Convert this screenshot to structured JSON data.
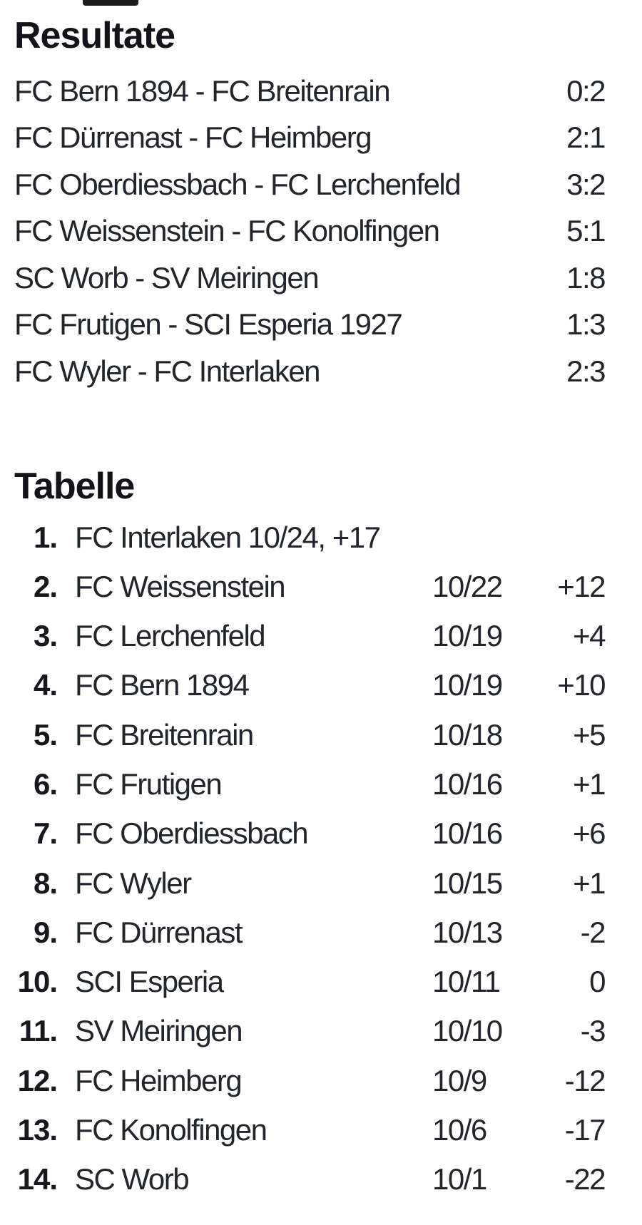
{
  "page": {
    "background_color": "#ffffff",
    "text_color": "#22252b",
    "heading_color": "#121419"
  },
  "results": {
    "title": "Resultate",
    "matches": [
      {
        "pairing": "FC Bern 1894 - FC Breitenrain",
        "score": "0:2"
      },
      {
        "pairing": "FC Dürrenast - FC Heimberg",
        "score": "2:1"
      },
      {
        "pairing": "FC Oberdiessbach - FC Lerchenfeld",
        "score": "3:2"
      },
      {
        "pairing": "FC Weissenstein - FC Konolfingen",
        "score": "5:1"
      },
      {
        "pairing": "SC Worb - SV Meiringen",
        "score": "1:8"
      },
      {
        "pairing": "FC Frutigen - SCI Esperia 1927",
        "score": "1:3"
      },
      {
        "pairing": "FC Wyler - FC Interlaken",
        "score": "2:3"
      }
    ]
  },
  "standings": {
    "title": "Tabelle",
    "rows": [
      {
        "rank": "1.",
        "team": "FC Interlaken 10/24, +17",
        "games": "",
        "diff": ""
      },
      {
        "rank": "2.",
        "team": "FC Weissenstein",
        "games": "10/22",
        "diff": "+12"
      },
      {
        "rank": "3.",
        "team": "FC Lerchenfeld",
        "games": "10/19",
        "diff": "+4"
      },
      {
        "rank": "4.",
        "team": "FC Bern 1894",
        "games": "10/19",
        "diff": "+10"
      },
      {
        "rank": "5.",
        "team": "FC Breitenrain",
        "games": "10/18",
        "diff": "+5"
      },
      {
        "rank": "6.",
        "team": "FC Frutigen",
        "games": "10/16",
        "diff": "+1"
      },
      {
        "rank": "7.",
        "team": "FC Oberdiessbach",
        "games": "10/16",
        "diff": "+6"
      },
      {
        "rank": "8.",
        "team": "FC Wyler",
        "games": "10/15",
        "diff": "+1"
      },
      {
        "rank": "9.",
        "team": "FC Dürrenast",
        "games": "10/13",
        "diff": "-2"
      },
      {
        "rank": "10.",
        "team": "SCI Esperia",
        "games": "10/11",
        "diff": "0"
      },
      {
        "rank": "11.",
        "team": "SV Meiringen",
        "games": "10/10",
        "diff": "-3"
      },
      {
        "rank": "12.",
        "team": "FC Heimberg",
        "games": "10/9",
        "diff": "-12"
      },
      {
        "rank": "13.",
        "team": "FC Konolfingen",
        "games": "10/6",
        "diff": "-17"
      },
      {
        "rank": "14.",
        "team": "SC Worb",
        "games": "10/1",
        "diff": "-22"
      }
    ]
  }
}
